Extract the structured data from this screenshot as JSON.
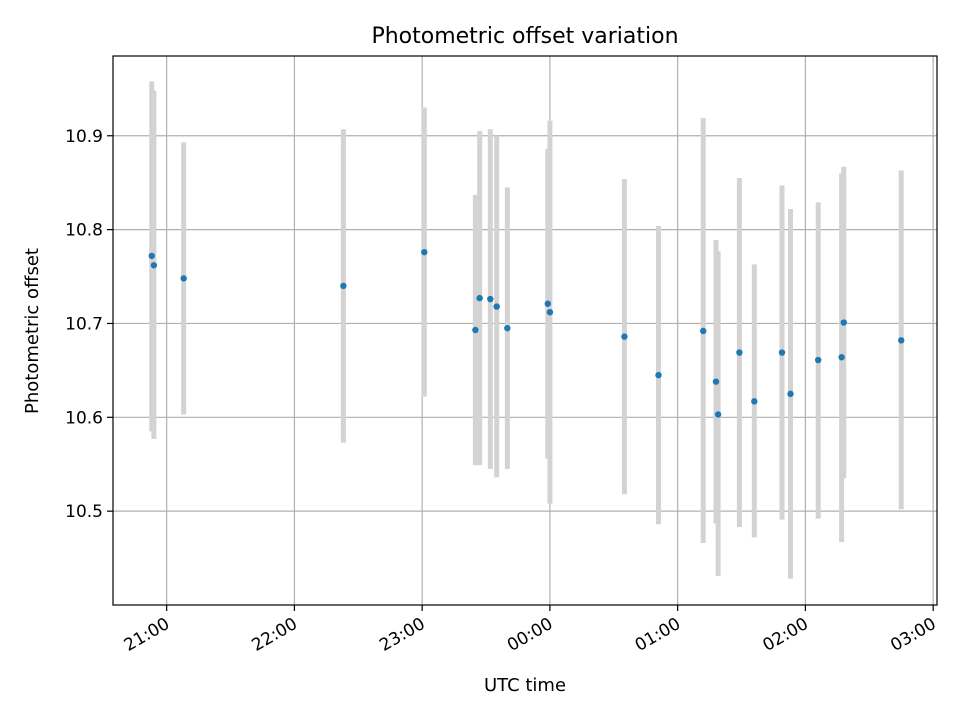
{
  "chart_data": {
    "type": "scatter",
    "title": "Photometric offset variation",
    "xlabel": "UTC time",
    "ylabel": "Photometric offset",
    "x_unit": "hours",
    "xlim": [
      20.58,
      27.03
    ],
    "ylim": [
      10.4,
      10.985
    ],
    "x_ticks": [
      {
        "value": 21,
        "label": "21:00"
      },
      {
        "value": 22,
        "label": "22:00"
      },
      {
        "value": 23,
        "label": "23:00"
      },
      {
        "value": 24,
        "label": "00:00"
      },
      {
        "value": 25,
        "label": "01:00"
      },
      {
        "value": 26,
        "label": "02:00"
      },
      {
        "value": 27,
        "label": "03:00"
      }
    ],
    "y_ticks": [
      {
        "value": 10.5,
        "label": "10.5"
      },
      {
        "value": 10.6,
        "label": "10.6"
      },
      {
        "value": 10.7,
        "label": "10.7"
      },
      {
        "value": 10.8,
        "label": "10.8"
      },
      {
        "value": 10.9,
        "label": "10.9"
      }
    ],
    "grid": true,
    "colors": {
      "point": "#1f77b4",
      "errorbar": "#d3d3d3",
      "grid": "#b0b0b0"
    },
    "points": [
      {
        "time": "20:53",
        "value": 10.772,
        "error_low": 10.585,
        "error_high": 10.958
      },
      {
        "time": "20:54",
        "value": 10.762,
        "error_low": 10.577,
        "error_high": 10.948
      },
      {
        "time": "21:08",
        "value": 10.748,
        "error_low": 10.603,
        "error_high": 10.893
      },
      {
        "time": "22:23",
        "value": 10.74,
        "error_low": 10.573,
        "error_high": 10.907
      },
      {
        "time": "23:01",
        "value": 10.776,
        "error_low": 10.622,
        "error_high": 10.93
      },
      {
        "time": "23:25",
        "value": 10.693,
        "error_low": 10.549,
        "error_high": 10.837
      },
      {
        "time": "23:27",
        "value": 10.727,
        "error_low": 10.549,
        "error_high": 10.905
      },
      {
        "time": "23:32",
        "value": 10.726,
        "error_low": 10.545,
        "error_high": 10.907
      },
      {
        "time": "23:35",
        "value": 10.718,
        "error_low": 10.536,
        "error_high": 10.9
      },
      {
        "time": "23:40",
        "value": 10.695,
        "error_low": 10.545,
        "error_high": 10.845
      },
      {
        "time": "23:59",
        "value": 10.721,
        "error_low": 10.556,
        "error_high": 10.886
      },
      {
        "time": "00:00",
        "value": 10.712,
        "error_low": 10.508,
        "error_high": 10.916
      },
      {
        "time": "00:35",
        "value": 10.686,
        "error_low": 10.518,
        "error_high": 10.854
      },
      {
        "time": "00:51",
        "value": 10.645,
        "error_low": 10.486,
        "error_high": 10.804
      },
      {
        "time": "01:12",
        "value": 10.692,
        "error_low": 10.466,
        "error_high": 10.919
      },
      {
        "time": "01:18",
        "value": 10.638,
        "error_low": 10.487,
        "error_high": 10.789
      },
      {
        "time": "01:19",
        "value": 10.603,
        "error_low": 10.431,
        "error_high": 10.777
      },
      {
        "time": "01:29",
        "value": 10.669,
        "error_low": 10.483,
        "error_high": 10.855
      },
      {
        "time": "01:36",
        "value": 10.617,
        "error_low": 10.472,
        "error_high": 10.763
      },
      {
        "time": "01:49",
        "value": 10.669,
        "error_low": 10.491,
        "error_high": 10.847
      },
      {
        "time": "01:53",
        "value": 10.625,
        "error_low": 10.428,
        "error_high": 10.822
      },
      {
        "time": "02:06",
        "value": 10.661,
        "error_low": 10.492,
        "error_high": 10.829
      },
      {
        "time": "02:17",
        "value": 10.664,
        "error_low": 10.467,
        "error_high": 10.86
      },
      {
        "time": "02:18",
        "value": 10.701,
        "error_low": 10.535,
        "error_high": 10.867
      },
      {
        "time": "02:45",
        "value": 10.682,
        "error_low": 10.502,
        "error_high": 10.863
      }
    ]
  }
}
